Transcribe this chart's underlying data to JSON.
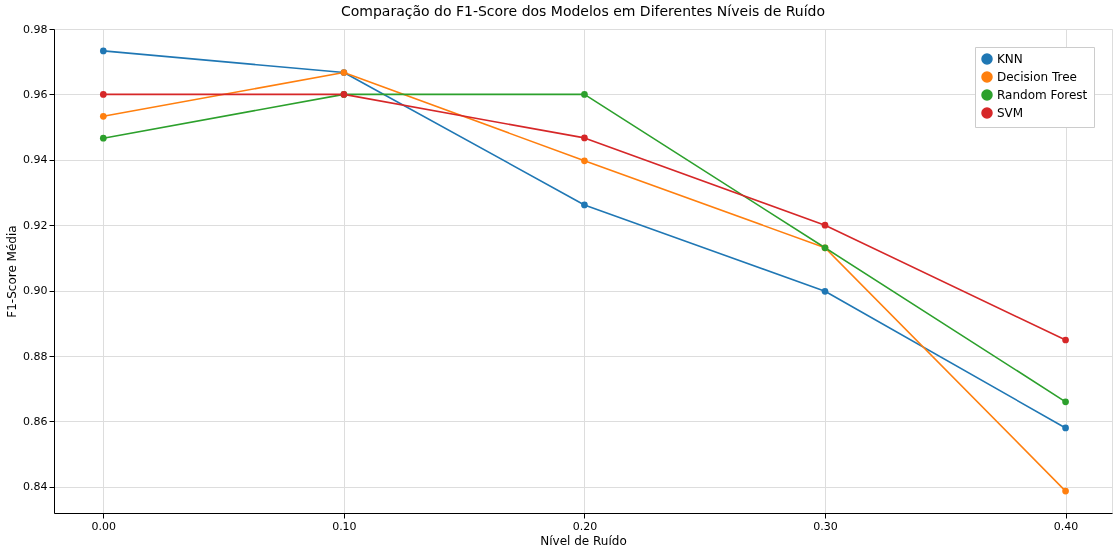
{
  "chart_data": {
    "type": "line",
    "title": "Comparação do F1-Score dos Modelos em Diferentes Níveis de Ruído",
    "xlabel": "Nível de Ruído",
    "ylabel": "F1-Score Média",
    "x": [
      0.0,
      0.1,
      0.2,
      0.3,
      0.4
    ],
    "series": [
      {
        "name": "KNN",
        "color": "#1f77b4",
        "values": [
          0.9733,
          0.9667,
          0.9262,
          0.8998,
          0.858
        ]
      },
      {
        "name": "Decision Tree",
        "color": "#ff7f0e",
        "values": [
          0.9533,
          0.9667,
          0.9397,
          0.9131,
          0.8387
        ]
      },
      {
        "name": "Random Forest",
        "color": "#2ca02c",
        "values": [
          0.9466,
          0.96,
          0.96,
          0.9131,
          0.866
        ]
      },
      {
        "name": "SVM",
        "color": "#d62728",
        "values": [
          0.96,
          0.96,
          0.9467,
          0.92,
          0.8849
        ]
      }
    ],
    "xlim": [
      -0.0205,
      0.4193
    ],
    "xticks": [
      {
        "value": 0.0,
        "label": "0.00"
      },
      {
        "value": 0.1,
        "label": "0.10"
      },
      {
        "value": 0.2,
        "label": "0.20"
      },
      {
        "value": 0.3,
        "label": "0.30"
      },
      {
        "value": 0.4,
        "label": "0.40"
      }
    ],
    "ylim": [
      0.832,
      0.98
    ],
    "yticks": [
      0.84,
      0.86,
      0.88,
      {
        "value": 0.9,
        "label": "0.90"
      },
      0.92,
      0.94,
      0.96,
      0.98
    ],
    "grid": true,
    "legend": "top right",
    "marker": "circle",
    "line_style": "solid"
  }
}
